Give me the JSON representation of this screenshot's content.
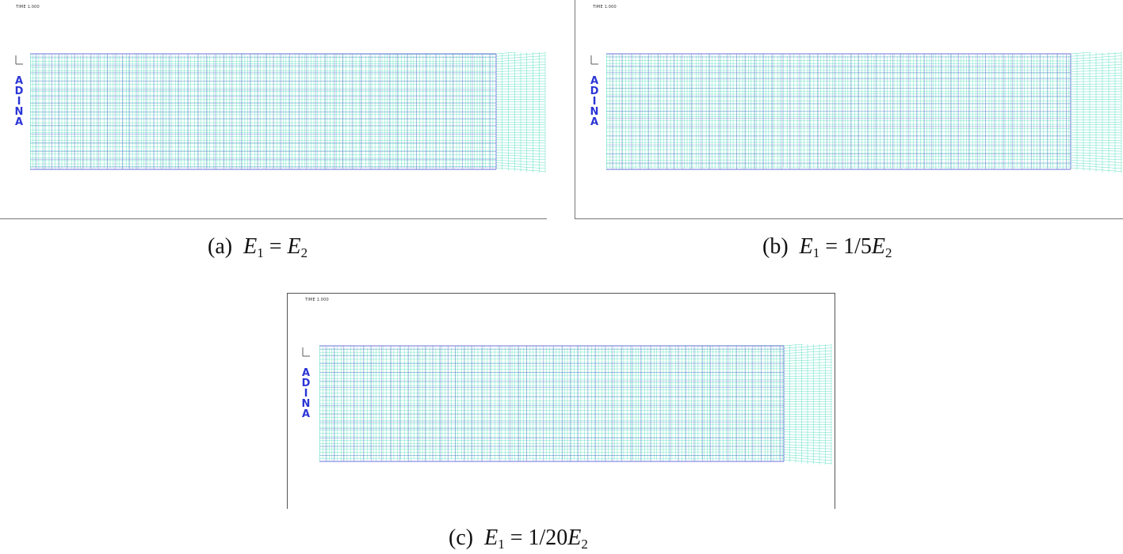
{
  "panels": [
    {
      "id": "a",
      "timestamp": "TIME 1.000",
      "logo": "ADINA",
      "caption": {
        "label": "(a)",
        "lhs": "E",
        "lhs_sub": "1",
        "op": "=",
        "coef": "",
        "rhs": "E",
        "rhs_sub": "2"
      },
      "colors": {
        "deformed_mesh": "#3fd9b4",
        "undeformed_mesh": "#6a72d8"
      }
    },
    {
      "id": "b",
      "timestamp": "TIME 1.000",
      "logo": "ADINA",
      "caption": {
        "label": "(b)",
        "lhs": "E",
        "lhs_sub": "1",
        "op": "=",
        "coef": "1/5",
        "rhs": "E",
        "rhs_sub": "2"
      },
      "colors": {
        "deformed_mesh": "#3fd9b4",
        "undeformed_mesh": "#6a72d8"
      }
    },
    {
      "id": "c",
      "timestamp": "TIME 1.000",
      "logo": "ADINA",
      "caption": {
        "label": "(c)",
        "lhs": "E",
        "lhs_sub": "1",
        "op": "=",
        "coef": "1/20",
        "rhs": "E",
        "rhs_sub": "2"
      },
      "colors": {
        "deformed_mesh": "#3fd9b4",
        "undeformed_mesh": "#6a72d8"
      }
    }
  ]
}
